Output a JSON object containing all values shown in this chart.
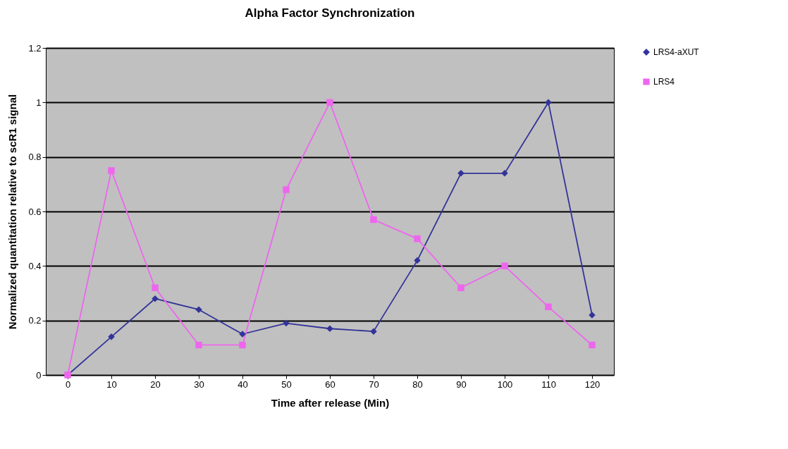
{
  "chart_data": {
    "type": "line",
    "title": "Alpha Factor Synchronization",
    "xlabel": "Time after release (Min)",
    "ylabel": "Normalized quantitation relative to scR1 signal",
    "categories": [
      "0",
      "10",
      "20",
      "30",
      "40",
      "50",
      "60",
      "70",
      "80",
      "90",
      "100",
      "110",
      "120"
    ],
    "series": [
      {
        "name": "LRS4-aXUT",
        "color": "#333399",
        "marker": "diamond",
        "values": [
          0,
          0.14,
          0.28,
          0.24,
          0.15,
          0.19,
          0.17,
          0.16,
          0.42,
          0.74,
          0.74,
          1,
          0.22
        ]
      },
      {
        "name": "LRS4",
        "color": "#ee66ee",
        "marker": "square",
        "values": [
          0,
          0.75,
          0.32,
          0.11,
          0.11,
          0.68,
          1,
          0.57,
          0.5,
          0.32,
          0.4,
          0.25,
          0.11
        ]
      }
    ],
    "ylim": [
      0,
      1.2
    ],
    "yticks": [
      0,
      0.2,
      0.4,
      0.6,
      0.8,
      1,
      1.2
    ],
    "grid": "y",
    "legend": "right",
    "line_style": "solid"
  }
}
